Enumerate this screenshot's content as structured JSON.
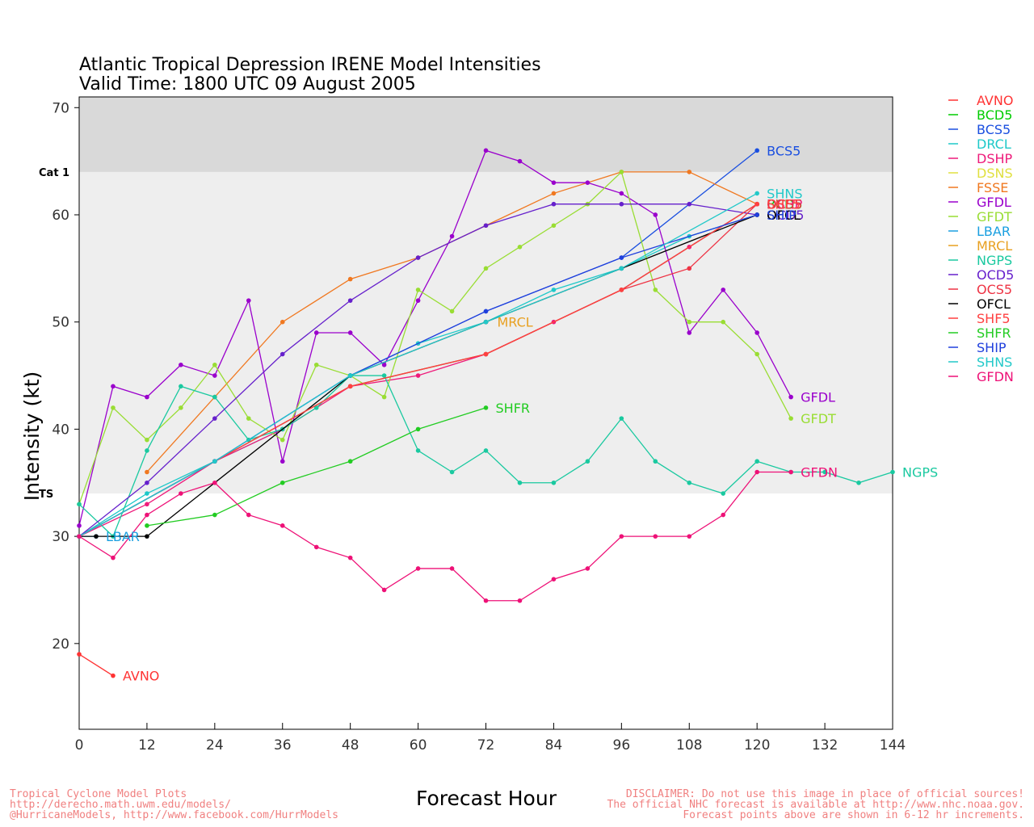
{
  "footer": {
    "left": [
      "Tropical Cyclone Model Plots",
      "http://derecho.math.uwm.edu/models/",
      "@HurricaneModels, http://www.facebook.com/HurrModels"
    ],
    "right": [
      "DISCLAIMER: Do not use this image in place of official sources!",
      "The official NHC forecast is available at http://www.nhc.noaa.gov.",
      "Forecast points above are shown in 6-12 hr increments."
    ]
  },
  "chart_data": {
    "type": "line",
    "title": "Atlantic Tropical Depression IRENE Model Intensities",
    "subtitle": "Valid Time: 1800 UTC 09 August 2005",
    "xlabel": "Forecast Hour",
    "ylabel": "Intensity (kt)",
    "xlim": [
      0,
      144
    ],
    "ylim": [
      12,
      71
    ],
    "xticks": [
      0,
      12,
      24,
      36,
      48,
      60,
      72,
      84,
      96,
      108,
      120,
      132,
      144
    ],
    "yticks": [
      20,
      30,
      40,
      50,
      60,
      70
    ],
    "bands": [
      {
        "label": "TS",
        "from": 34,
        "to": 64,
        "color": "#eeeeee"
      },
      {
        "label": "Cat 1",
        "from": 64,
        "to": 71,
        "color": "#d9d9d9"
      }
    ],
    "legend_position": "right",
    "series": [
      {
        "name": "AVNO",
        "color": "#ff3333",
        "x": [
          0,
          6
        ],
        "y": [
          19,
          17
        ],
        "end_label": "AVNO"
      },
      {
        "name": "BCD5",
        "color": "#00cc00",
        "x": [
          0,
          24,
          48,
          72,
          96,
          120
        ],
        "y": [
          30,
          37,
          44,
          47,
          53,
          61
        ],
        "end_label": "BCD5"
      },
      {
        "name": "BCS5",
        "color": "#1a4fe0",
        "x": [
          0,
          24,
          48,
          72,
          96,
          120
        ],
        "y": [
          30,
          37,
          45,
          51,
          56,
          66
        ],
        "end_label": "BCS5"
      },
      {
        "name": "DRCL",
        "color": "#1ec9c9",
        "x": [
          0,
          12,
          24,
          36,
          48,
          60,
          72,
          84,
          96,
          108,
          120
        ],
        "y": [
          30,
          34,
          37,
          40,
          45,
          48,
          50,
          53,
          55,
          58,
          60
        ],
        "end_label": ""
      },
      {
        "name": "DSHP",
        "color": "#ee1a7a",
        "x": [
          0,
          12,
          24,
          36,
          48,
          60,
          72,
          84,
          96,
          108,
          120
        ],
        "y": [
          30,
          33,
          37,
          40,
          44,
          45,
          47,
          50,
          53,
          57,
          61
        ],
        "end_label": "DSHP"
      },
      {
        "name": "DSNS",
        "color": "#e0e040",
        "x": [],
        "y": [],
        "end_label": ""
      },
      {
        "name": "FSSE",
        "color": "#f07820",
        "x": [
          12,
          24,
          36,
          48,
          60,
          72,
          84,
          96,
          108,
          120
        ],
        "y": [
          36,
          43,
          50,
          54,
          56,
          59,
          62,
          64,
          64,
          61
        ],
        "end_label": ""
      },
      {
        "name": "GFDL",
        "color": "#9a00cc",
        "x": [
          0,
          6,
          12,
          18,
          24,
          30,
          36,
          42,
          48,
          54,
          60,
          66,
          72,
          78,
          84,
          90,
          96,
          102,
          108,
          114,
          120,
          126
        ],
        "y": [
          31,
          44,
          43,
          46,
          45,
          52,
          37,
          49,
          49,
          46,
          52,
          58,
          66,
          65,
          63,
          63,
          62,
          60,
          49,
          53,
          49,
          43
        ],
        "end_label": "GFDL"
      },
      {
        "name": "GFDT",
        "color": "#99dd33",
        "x": [
          0,
          6,
          12,
          18,
          24,
          30,
          36,
          42,
          48,
          54,
          60,
          66,
          72,
          78,
          84,
          90,
          96,
          102,
          108,
          114,
          120,
          126
        ],
        "y": [
          33,
          42,
          39,
          42,
          46,
          41,
          39,
          46,
          45,
          43,
          53,
          51,
          55,
          57,
          59,
          61,
          64,
          53,
          50,
          50,
          47,
          41
        ],
        "end_label": "GFDT"
      },
      {
        "name": "LBAR",
        "color": "#1a9fe0",
        "x": [
          0,
          3
        ],
        "y": [
          30,
          30
        ],
        "end_label": "LBAR"
      },
      {
        "name": "MRCL",
        "color": "#e8a020",
        "x": [],
        "y": [],
        "end_label": "MRCL"
      },
      {
        "name": "NGPS",
        "color": "#1ac9a0",
        "x": [
          0,
          6,
          12,
          18,
          24,
          30,
          36,
          42,
          48,
          54,
          60,
          66,
          72,
          78,
          84,
          90,
          96,
          102,
          108,
          114,
          120,
          126,
          132,
          138,
          144
        ],
        "y": [
          33,
          30,
          38,
          44,
          43,
          39,
          40,
          42,
          45,
          45,
          38,
          36,
          38,
          35,
          35,
          37,
          41,
          37,
          35,
          34,
          37,
          36,
          36,
          35,
          36
        ],
        "end_label": "NGPS"
      },
      {
        "name": "OCD5",
        "color": "#6620cc",
        "x": [
          0,
          12,
          24,
          36,
          48,
          60,
          72,
          84,
          96,
          108,
          120
        ],
        "y": [
          30,
          35,
          41,
          47,
          52,
          56,
          59,
          61,
          61,
          61,
          60
        ],
        "end_label": "OCD5"
      },
      {
        "name": "OCS5",
        "color": "#ee3344",
        "x": [
          0,
          24,
          48,
          72,
          96,
          108,
          120
        ],
        "y": [
          30,
          37,
          44,
          47,
          53,
          55,
          61
        ],
        "end_label": "OCS5"
      },
      {
        "name": "OFCL",
        "color": "#000000",
        "x": [
          0,
          3,
          12,
          48,
          72,
          96,
          120
        ],
        "y": [
          30,
          30,
          30,
          45,
          50,
          55,
          60
        ],
        "end_label": "OFCL"
      },
      {
        "name": "SHF5",
        "color": "#ff4040",
        "x": [
          0,
          24,
          48,
          72,
          96,
          120
        ],
        "y": [
          30,
          37,
          44,
          47,
          53,
          61
        ],
        "end_label": "SHF5"
      },
      {
        "name": "SHFR",
        "color": "#22cc22",
        "x": [
          12,
          24,
          36,
          48,
          60,
          72
        ],
        "y": [
          31,
          32,
          35,
          37,
          40,
          42
        ],
        "end_label": "SHFR"
      },
      {
        "name": "SHIP",
        "color": "#2040dd",
        "x": [
          0,
          24,
          48,
          72,
          96,
          120
        ],
        "y": [
          30,
          37,
          45,
          51,
          56,
          60
        ],
        "end_label": "SHIP"
      },
      {
        "name": "SHNS",
        "color": "#22c9c9",
        "x": [
          0,
          24,
          48,
          72,
          96,
          120
        ],
        "y": [
          30,
          37,
          45,
          50,
          55,
          62
        ],
        "end_label": "SHNS"
      },
      {
        "name": "GFDN",
        "color": "#ee1177",
        "x": [
          0,
          6,
          12,
          18,
          24,
          30,
          36,
          42,
          48,
          54,
          60,
          66,
          72,
          78,
          84,
          90,
          96,
          102,
          108,
          114,
          120,
          126
        ],
        "y": [
          30,
          28,
          32,
          34,
          35,
          32,
          31,
          29,
          28,
          25,
          27,
          27,
          24,
          24,
          26,
          27,
          30,
          30,
          30,
          32,
          36,
          36
        ],
        "end_label": "GFDN"
      }
    ],
    "annotations": [
      {
        "text": "MRCL",
        "x": 74,
        "y": 50,
        "color": "#e8a020"
      }
    ]
  }
}
